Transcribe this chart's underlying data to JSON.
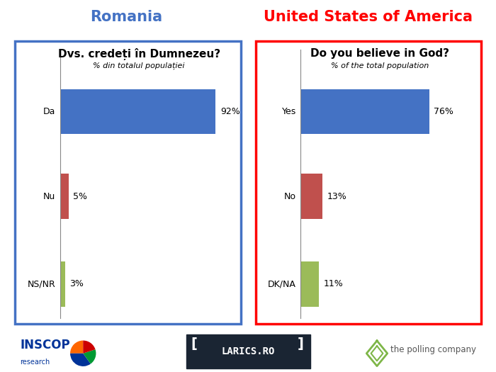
{
  "romania_title": "Dvs. credeți în Dumnezeu?",
  "romania_subtitle": "% din totalul populației",
  "romania_header": "Romania",
  "romania_labels": [
    "Da",
    "Nu",
    "NS/NR"
  ],
  "romania_values": [
    92,
    5,
    3
  ],
  "romania_colors": [
    "#4472C4",
    "#C0504D",
    "#9BBB59"
  ],
  "usa_title": "Do you believe in God?",
  "usa_subtitle": "% of the total population",
  "usa_header": "United States of America",
  "usa_labels": [
    "Yes",
    "No",
    "DK/NA"
  ],
  "usa_values": [
    76,
    13,
    11
  ],
  "usa_colors": [
    "#4472C4",
    "#C0504D",
    "#9BBB59"
  ],
  "romania_border_color": "#4472C4",
  "usa_border_color": "#FF0000",
  "romania_header_color": "#4472C4",
  "usa_header_color": "#FF0000",
  "bg_color": "#FFFFFF",
  "bar_label_fontsize": 9,
  "title_fontsize": 11,
  "subtitle_fontsize": 8,
  "header_fontsize": 15,
  "ylabel_fontsize": 9
}
